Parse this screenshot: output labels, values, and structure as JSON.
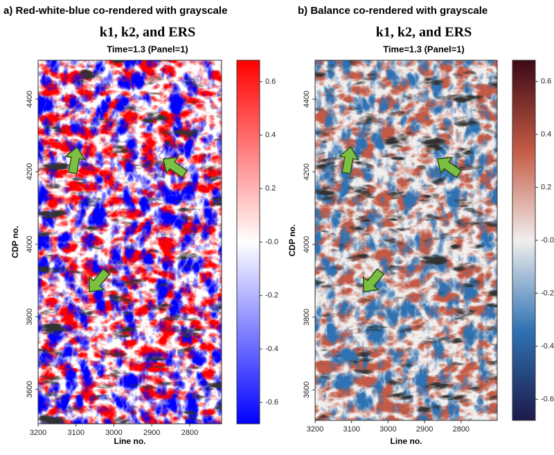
{
  "chart_data": [
    {
      "type": "heatmap",
      "panel_label": "a) Red-white-blue co-rendered with grayscale",
      "title": "k1, k2, and ERS",
      "subtitle": "Time=1.3 (Panel=1)",
      "xlabel": "Line no.",
      "ylabel": "CDP no.",
      "xlim": [
        3200,
        2716
      ],
      "xticks": [
        3200,
        3100,
        3000,
        2900,
        2800
      ],
      "ylim": [
        3505,
        4507
      ],
      "yticks": [
        3600,
        3800,
        4000,
        4200,
        4400
      ],
      "colorbar": {
        "lim": [
          -0.68,
          0.68
        ],
        "ticks": [
          0.6,
          0.4,
          0.2,
          {
            "value": 0,
            "label": "-0.0"
          },
          -0.2,
          -0.4,
          -0.6
        ],
        "colors": [
          "#0000ff",
          "#ffffff",
          "#ff0000"
        ]
      }
    },
    {
      "type": "heatmap",
      "panel_label": "b) Balance co-rendered with grayscale",
      "title": "k1, k2, and ERS",
      "subtitle": "Time=1.3 (Panel=1)",
      "xlabel": "Line no.",
      "ylabel": "CDP no.",
      "xlim": [
        3200,
        2701
      ],
      "xticks": [
        3200,
        3100,
        3000,
        2900,
        2800
      ],
      "ylim": [
        3516,
        4507
      ],
      "yticks": [
        3600,
        3800,
        4000,
        4200,
        4400
      ],
      "colorbar": {
        "lim": [
          -0.68,
          0.68
        ],
        "ticks": [
          0.6,
          0.4,
          0.2,
          {
            "value": 0,
            "label": "-0.0"
          },
          -0.2,
          -0.4,
          -0.6
        ],
        "colors": [
          "#1c1a4a",
          "#2f72b3",
          "#f1efee",
          "#c45a44",
          "#3c0a16"
        ]
      }
    }
  ]
}
